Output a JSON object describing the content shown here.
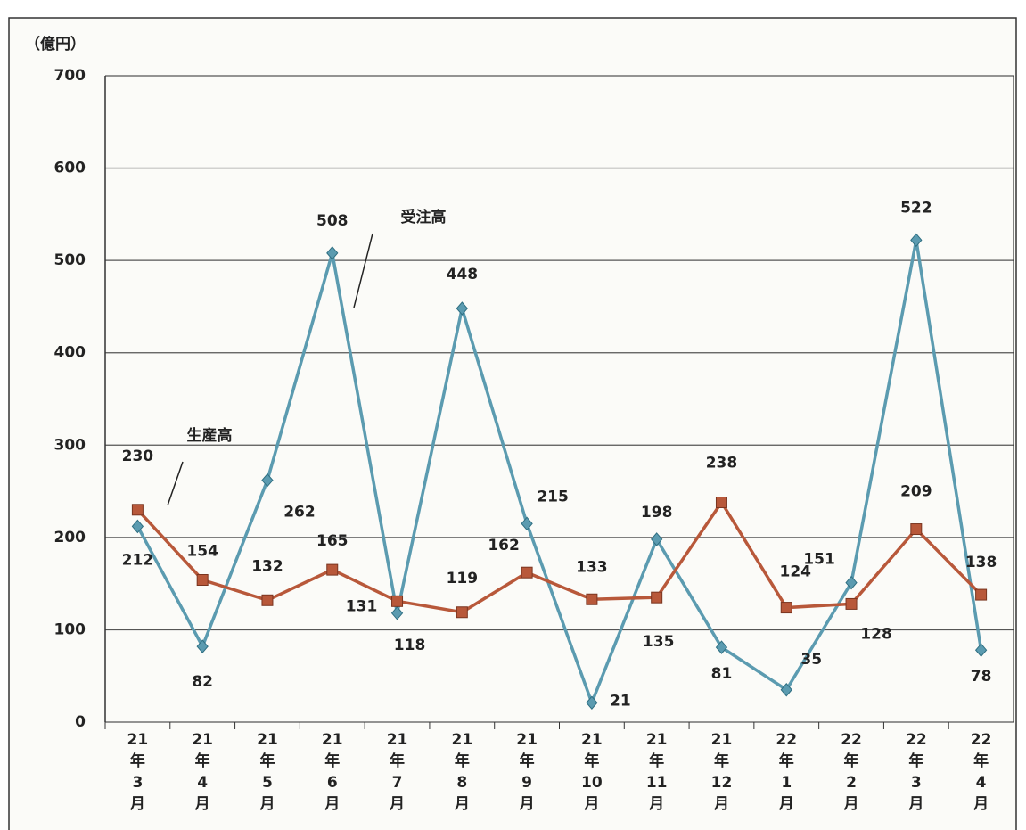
{
  "chart_data": {
    "type": "line",
    "y_unit_label": "（億円）",
    "categories": [
      "21年3月",
      "21年4月",
      "21年5月",
      "21年6月",
      "21年7月",
      "21年8月",
      "21年9月",
      "21年10月",
      "21年11月",
      "21年12月",
      "22年1月",
      "22年2月",
      "22年3月",
      "22年4月"
    ],
    "series": [
      {
        "name": "受注高",
        "color": "#5b9bb0",
        "marker": "diamond",
        "label_color": "#111111",
        "values": [
          212,
          82,
          262,
          508,
          118,
          448,
          215,
          21,
          198,
          81,
          35,
          151,
          522,
          78
        ]
      },
      {
        "name": "生産高",
        "color": "#b8583a",
        "marker": "square",
        "label_color": "#d8281e",
        "values": [
          230,
          154,
          132,
          165,
          131,
          119,
          162,
          133,
          135,
          238,
          124,
          128,
          209,
          138
        ]
      }
    ],
    "ylim": [
      0,
      700
    ],
    "yticks": [
      0,
      100,
      200,
      300,
      400,
      500,
      600,
      700
    ],
    "grid": true
  }
}
